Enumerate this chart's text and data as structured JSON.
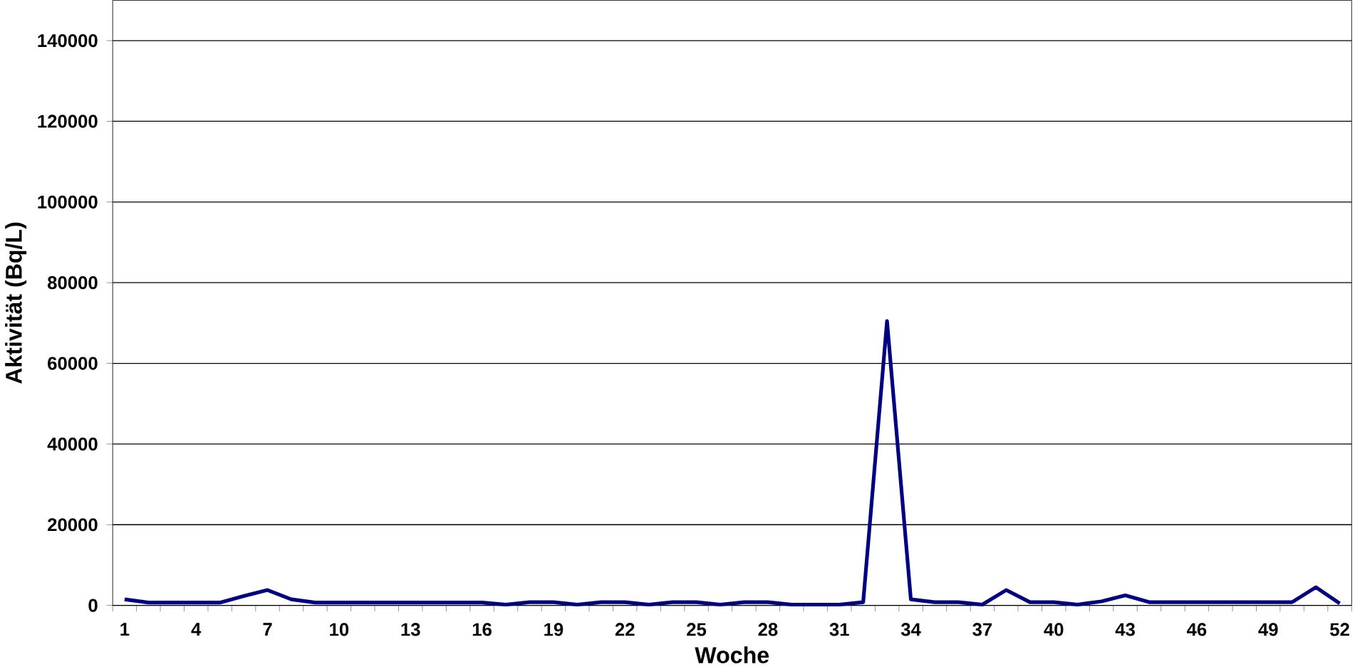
{
  "chart_data": {
    "type": "line",
    "xlabel": "Woche",
    "ylabel": "Aktivität (Bq/L)",
    "categories": [
      "1",
      null,
      null,
      "4",
      null,
      null,
      "7",
      null,
      null,
      "10",
      null,
      null,
      "13",
      null,
      null,
      "16",
      null,
      null,
      "19",
      null,
      null,
      "22",
      null,
      null,
      "25",
      null,
      null,
      "28",
      null,
      null,
      "31",
      null,
      null,
      "34",
      null,
      null,
      "37",
      null,
      null,
      "40",
      null,
      null,
      "43",
      null,
      null,
      "46",
      null,
      null,
      "49",
      null,
      null,
      "52"
    ],
    "series": [
      {
        "color": "#000080",
        "values": [
          1500,
          700,
          700,
          700,
          700,
          2300,
          3800,
          1500,
          700,
          700,
          700,
          700,
          700,
          700,
          700,
          700,
          200,
          800,
          800,
          200,
          800,
          800,
          200,
          800,
          800,
          200,
          800,
          800,
          200,
          200,
          200,
          800,
          70500,
          1500,
          800,
          800,
          200,
          3800,
          800,
          800,
          200,
          1000,
          2500,
          800,
          800,
          800,
          800,
          800,
          800,
          800,
          4500,
          500
        ]
      }
    ],
    "ylim": [
      0,
      150000
    ],
    "yticks": [
      0,
      20000,
      40000,
      60000,
      80000,
      100000,
      120000,
      140000
    ],
    "grid": "y",
    "marker": "none",
    "line_style": "solid"
  }
}
